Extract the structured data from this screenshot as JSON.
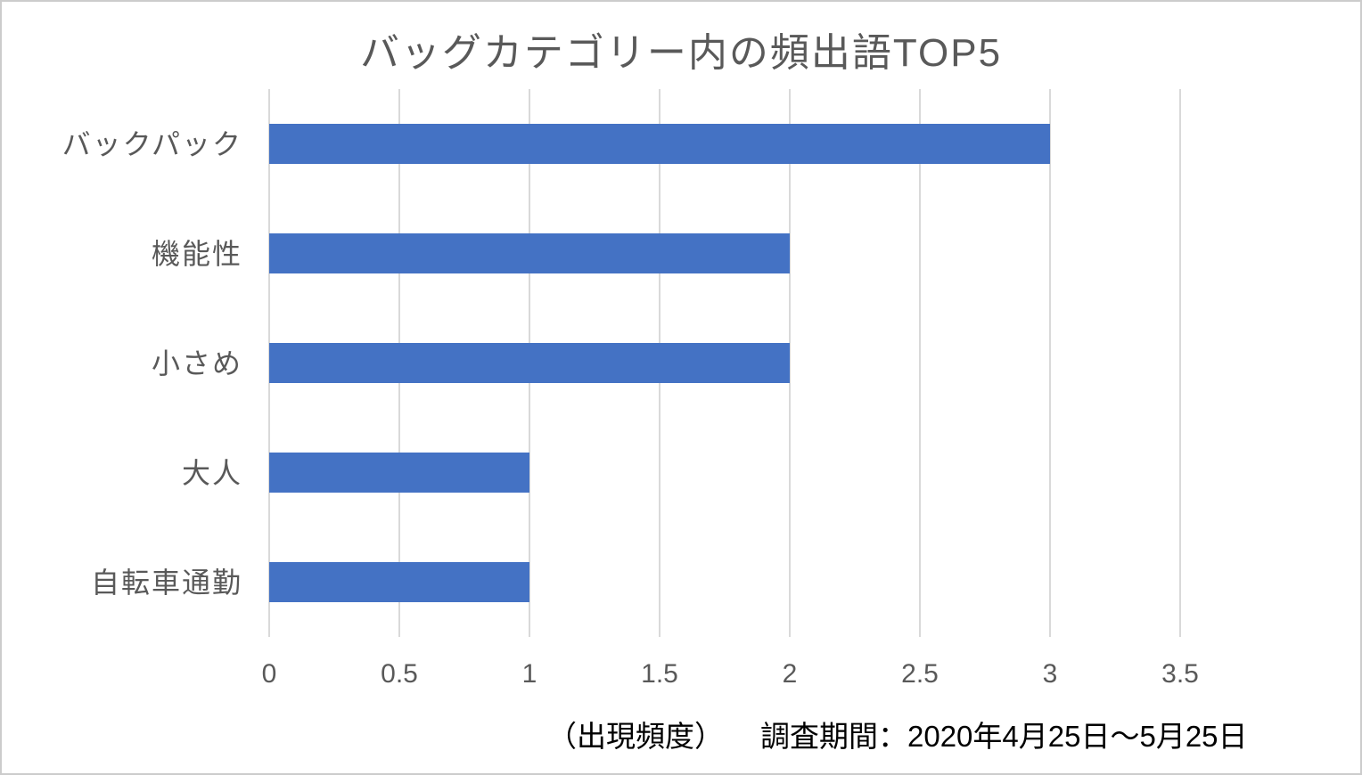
{
  "chart_data": {
    "type": "bar",
    "orientation": "horizontal",
    "title": "バッグカテゴリー内の頻出語TOP5",
    "categories": [
      "バックパック",
      "機能性",
      "小さめ",
      "大人",
      "自転車通勤"
    ],
    "values": [
      3,
      2,
      2,
      1,
      1
    ],
    "xlabel": "（出現頻度）",
    "annotation": "調査期間：2020年4月25日～5月25日",
    "xlim": [
      0,
      3.5
    ],
    "xticks": [
      0,
      0.5,
      1,
      1.5,
      2,
      2.5,
      3,
      3.5
    ],
    "xtick_labels": [
      "0",
      "0.5",
      "1",
      "1.5",
      "2",
      "2.5",
      "3",
      "3.5"
    ],
    "grid": "vertical-only",
    "legend": "none",
    "colors": {
      "bar": "#4472C4",
      "gridline": "#D9D9D9",
      "title_text": "#595959",
      "axis_text": "#595959",
      "footer_text": "#000000",
      "frame_border": "#cccccc",
      "background": "#ffffff"
    }
  }
}
